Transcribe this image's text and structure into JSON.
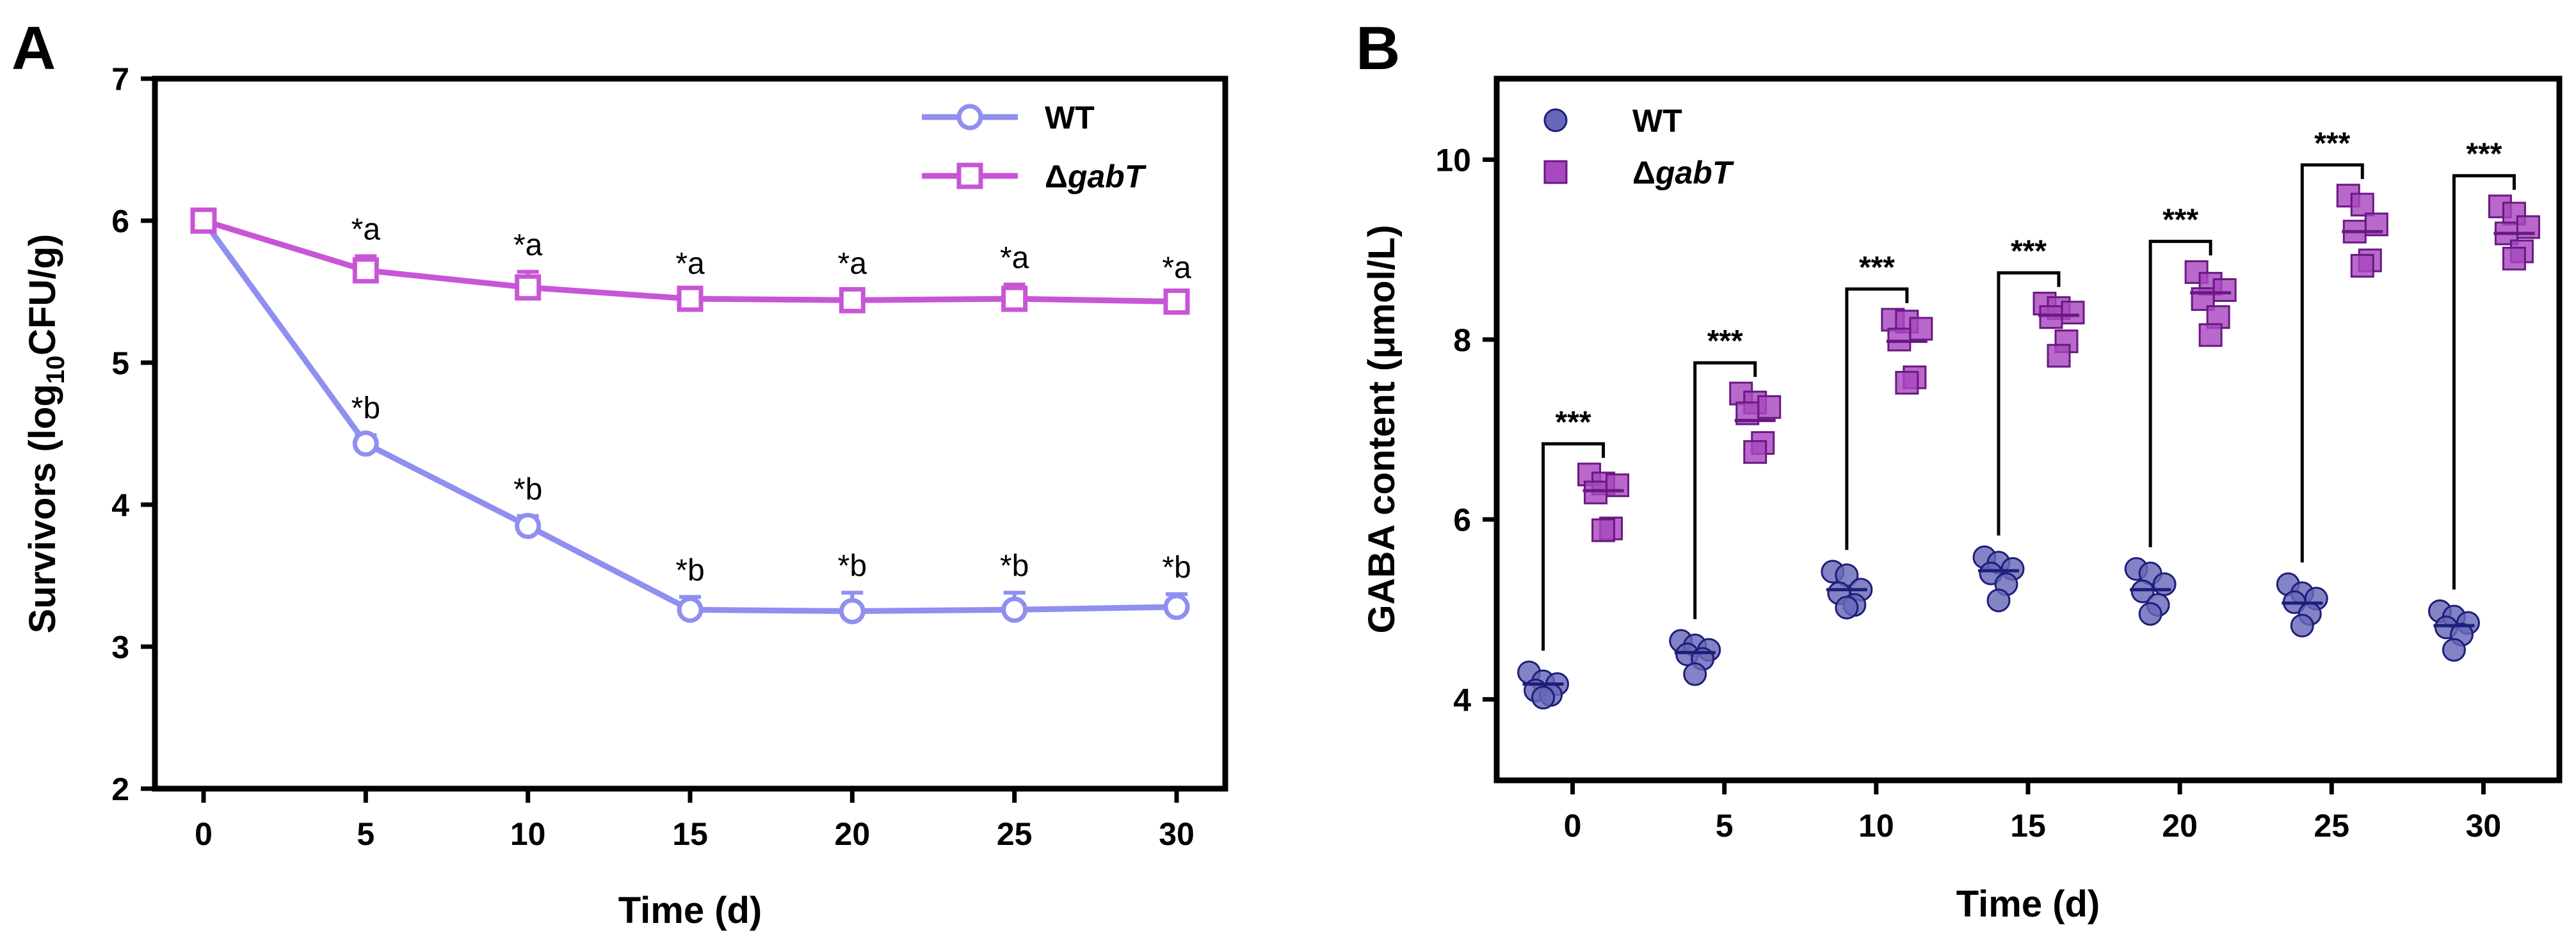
{
  "figure": {
    "panel_a_label": "A",
    "panel_b_label": "B"
  },
  "colors": {
    "wt_line": "#8f8ff0",
    "mut_line": "#c855d6",
    "wt_point_fill": "#6868b8",
    "wt_point_stroke": "#1e1e7a",
    "mut_point_fill": "#a848c0",
    "mut_point_stroke": "#6a1882"
  },
  "chart_data": [
    {
      "type": "line",
      "panel": "A",
      "title": "",
      "xlabel": "Time (d)",
      "ylabel_main": "Survivors (log",
      "ylabel_sub": "10",
      "ylabel_end": "CFU/g)",
      "x": [
        0,
        5,
        10,
        15,
        20,
        25,
        30
      ],
      "x_tick_labels": [
        "0",
        "5",
        "10",
        "15",
        "20",
        "25",
        "30"
      ],
      "xlim": [
        -1.5,
        31.5
      ],
      "ylim": [
        2,
        7
      ],
      "y_ticks": [
        2,
        3,
        4,
        5,
        6,
        7
      ],
      "y_tick_labels": [
        "2",
        "3",
        "4",
        "5",
        "6",
        "7"
      ],
      "legend_position": "top-right",
      "series": [
        {
          "name": "WT",
          "name_prefix": "",
          "values": [
            6.0,
            4.43,
            3.85,
            3.26,
            3.25,
            3.26,
            3.28
          ],
          "errors": [
            0.03,
            0.06,
            0.07,
            0.09,
            0.13,
            0.12,
            0.09
          ],
          "annotations": [
            "",
            "*b",
            "*b",
            "*b",
            "*b",
            "*b",
            "*b"
          ]
        },
        {
          "name": "gabT",
          "name_prefix": "Δ",
          "values": [
            6.0,
            5.65,
            5.53,
            5.45,
            5.44,
            5.45,
            5.43
          ],
          "errors": [
            0.02,
            0.1,
            0.11,
            0.06,
            0.07,
            0.1,
            0.05
          ],
          "annotations": [
            "",
            "*a",
            "*a",
            "*a",
            "*a",
            "*a",
            "*a"
          ]
        }
      ]
    },
    {
      "type": "scatter",
      "panel": "B",
      "title": "",
      "xlabel": "Time (d)",
      "ylabel": "GABA content (μmol/L)",
      "categories": [
        "0",
        "5",
        "10",
        "15",
        "20",
        "25",
        "30"
      ],
      "ylim": [
        3.1,
        10.9
      ],
      "y_ticks": [
        4,
        6,
        8,
        10
      ],
      "y_tick_labels": [
        "4",
        "6",
        "8",
        "10"
      ],
      "legend_position": "top-left",
      "series": [
        {
          "name": "WT",
          "name_prefix": "",
          "marker": "circle",
          "means": [
            4.17,
            4.52,
            5.22,
            5.43,
            5.22,
            5.07,
            4.82
          ],
          "points": [
            [
              4.3,
              4.2,
              4.17,
              4.1,
              4.05,
              4.02
            ],
            [
              4.65,
              4.6,
              4.55,
              4.5,
              4.45,
              4.28
            ],
            [
              5.42,
              5.38,
              5.22,
              5.18,
              5.05,
              5.02
            ],
            [
              5.58,
              5.52,
              5.45,
              5.4,
              5.28,
              5.1
            ],
            [
              5.45,
              5.4,
              5.28,
              5.2,
              5.05,
              4.95
            ],
            [
              5.28,
              5.18,
              5.12,
              5.08,
              4.95,
              4.82
            ],
            [
              4.98,
              4.92,
              4.85,
              4.8,
              4.72,
              4.55
            ]
          ]
        },
        {
          "name": "gabT",
          "name_prefix": "Δ",
          "marker": "square",
          "means": [
            6.32,
            7.1,
            7.98,
            8.27,
            8.52,
            9.2,
            9.18
          ],
          "points": [
            [
              6.5,
              6.4,
              6.38,
              6.3,
              5.9,
              5.88
            ],
            [
              7.4,
              7.3,
              7.25,
              7.18,
              6.85,
              6.75
            ],
            [
              8.22,
              8.2,
              8.12,
              8.0,
              7.58,
              7.52
            ],
            [
              8.4,
              8.35,
              8.3,
              8.25,
              7.98,
              7.82
            ],
            [
              8.75,
              8.62,
              8.55,
              8.45,
              8.25,
              8.05
            ],
            [
              9.6,
              9.5,
              9.28,
              9.2,
              8.88,
              8.82
            ],
            [
              9.48,
              9.4,
              9.25,
              9.18,
              8.98,
              8.9
            ]
          ]
        }
      ],
      "significance": [
        "***",
        "***",
        "***",
        "***",
        "***",
        "***",
        "***"
      ]
    }
  ]
}
